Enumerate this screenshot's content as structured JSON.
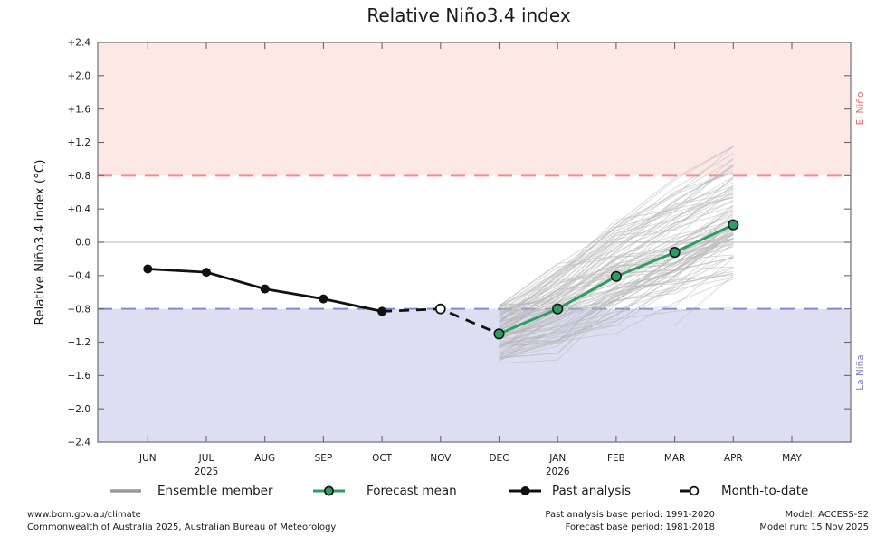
{
  "colors": {
    "el_nino_band": "#fce9e6",
    "la_nina_band": "#dedef3",
    "el_nino_line": "#fb8a8a",
    "la_nina_line": "#8787cd",
    "el_nino_text": "#e06a66",
    "la_nina_text": "#7c7cc4",
    "zero_line": "#c4c4c4",
    "frame": "#7a7a7a",
    "tick": "#666666",
    "ensemble": "#b8b8b8",
    "ensemble_legend": "#999999",
    "past": "#111111",
    "forecast": "#2e9e60",
    "marker_edge": "#111111",
    "open_marker_fill": "#ffffff",
    "text": "#1a1a1a"
  },
  "chart_data": {
    "type": "line",
    "title": "Relative Niño3.4 index",
    "ylabel": "Relative Niño3.4 index (°C)",
    "ylim": [
      -2.4,
      2.4
    ],
    "ytick_step": 0.4,
    "grid": "zero-line-only",
    "months": [
      "JUN",
      "JUL",
      "AUG",
      "SEP",
      "OCT",
      "NOV",
      "DEC",
      "JAN",
      "FEB",
      "MAR",
      "APR",
      "MAY"
    ],
    "year_labels": [
      {
        "month_index": 1,
        "label": "2025"
      },
      {
        "month_index": 7,
        "label": "2026"
      }
    ],
    "thresholds": {
      "el_nino": 0.8,
      "la_nina": -0.8,
      "zero": 0.0
    },
    "region_labels": {
      "el_nino": "El Niño",
      "la_nina": "La Niña"
    },
    "series": [
      {
        "name": "Past analysis",
        "style": "solid-black-dots",
        "x": [
          0,
          1,
          2,
          3,
          4
        ],
        "values": [
          -0.32,
          -0.36,
          -0.56,
          -0.68,
          -0.83
        ]
      },
      {
        "name": "Month-to-date",
        "style": "dashed-black-open-dot",
        "x": [
          4,
          5,
          6
        ],
        "values": [
          -0.83,
          -0.8,
          -1.1
        ],
        "marker_x": 5
      },
      {
        "name": "Forecast mean",
        "style": "solid-green-dots",
        "x": [
          6,
          7,
          8,
          9,
          10
        ],
        "values": [
          -1.1,
          -0.8,
          -0.41,
          -0.12,
          0.21
        ]
      }
    ],
    "ensemble": {
      "name": "Ensemble member",
      "count": 99,
      "seed": 7,
      "x": [
        6,
        7,
        8,
        9,
        10
      ],
      "start_mean": -1.1,
      "start_spread": 0.36,
      "drift": [
        0.3,
        0.39,
        0.29,
        0.33
      ],
      "noise": 0.3,
      "value_clamp": [
        -1.6,
        1.15
      ]
    }
  },
  "legend": {
    "items": [
      {
        "label": "Ensemble member",
        "swatch": "ensemble"
      },
      {
        "label": "Forecast mean",
        "swatch": "forecast"
      },
      {
        "label": "Past analysis",
        "swatch": "past"
      },
      {
        "label": "Month-to-date",
        "swatch": "mtd"
      }
    ]
  },
  "footer": {
    "left": [
      "www.bom.gov.au/climate",
      "Commonwealth of Australia 2025, Australian Bureau of Meteorology"
    ],
    "center": [
      "Past analysis base period: 1991-2020",
      "Forecast base period: 1981-2018"
    ],
    "right": [
      "Model: ACCESS-S2",
      "Model run: 15 Nov 2025"
    ]
  }
}
